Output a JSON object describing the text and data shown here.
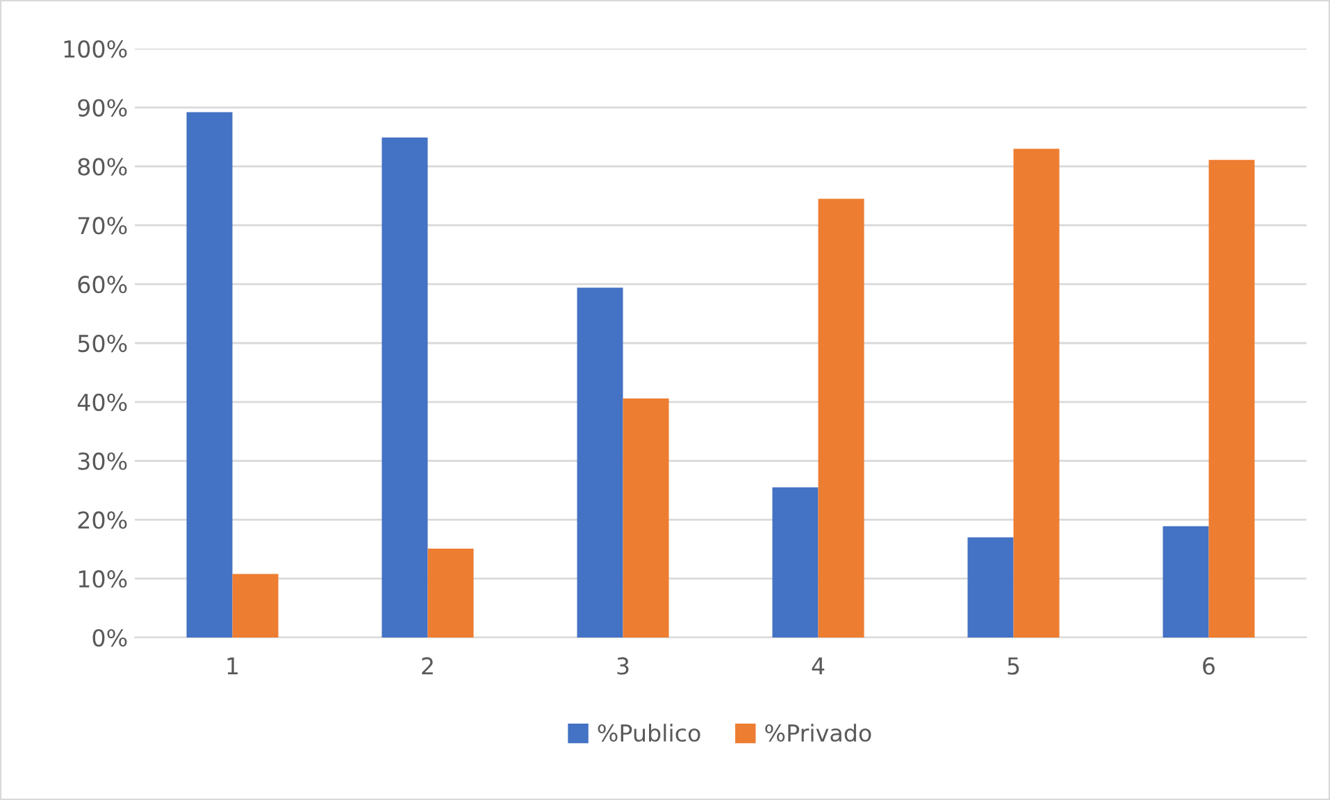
{
  "chart_data": {
    "type": "bar",
    "categories": [
      "1",
      "2",
      "3",
      "4",
      "5",
      "6"
    ],
    "series": [
      {
        "name": "%Publico",
        "color": "#4472c4",
        "values": [
          89.2,
          84.9,
          59.4,
          25.5,
          17.0,
          18.9
        ]
      },
      {
        "name": "%Privado",
        "color": "#ed7d31",
        "values": [
          10.8,
          15.1,
          40.6,
          74.5,
          83.0,
          81.1
        ]
      }
    ],
    "ylim": [
      0,
      100
    ],
    "yticks": [
      {
        "value": 0,
        "label": "0%"
      },
      {
        "value": 10,
        "label": "10%"
      },
      {
        "value": 20,
        "label": "20%"
      },
      {
        "value": 30,
        "label": "30%"
      },
      {
        "value": 40,
        "label": "40%"
      },
      {
        "value": 50,
        "label": "50%"
      },
      {
        "value": 60,
        "label": "60%"
      },
      {
        "value": 70,
        "label": "70%"
      },
      {
        "value": 80,
        "label": "80%"
      },
      {
        "value": 90,
        "label": "90%"
      },
      {
        "value": 100,
        "label": "100%"
      }
    ],
    "grid": "y",
    "legend": "bottom"
  }
}
